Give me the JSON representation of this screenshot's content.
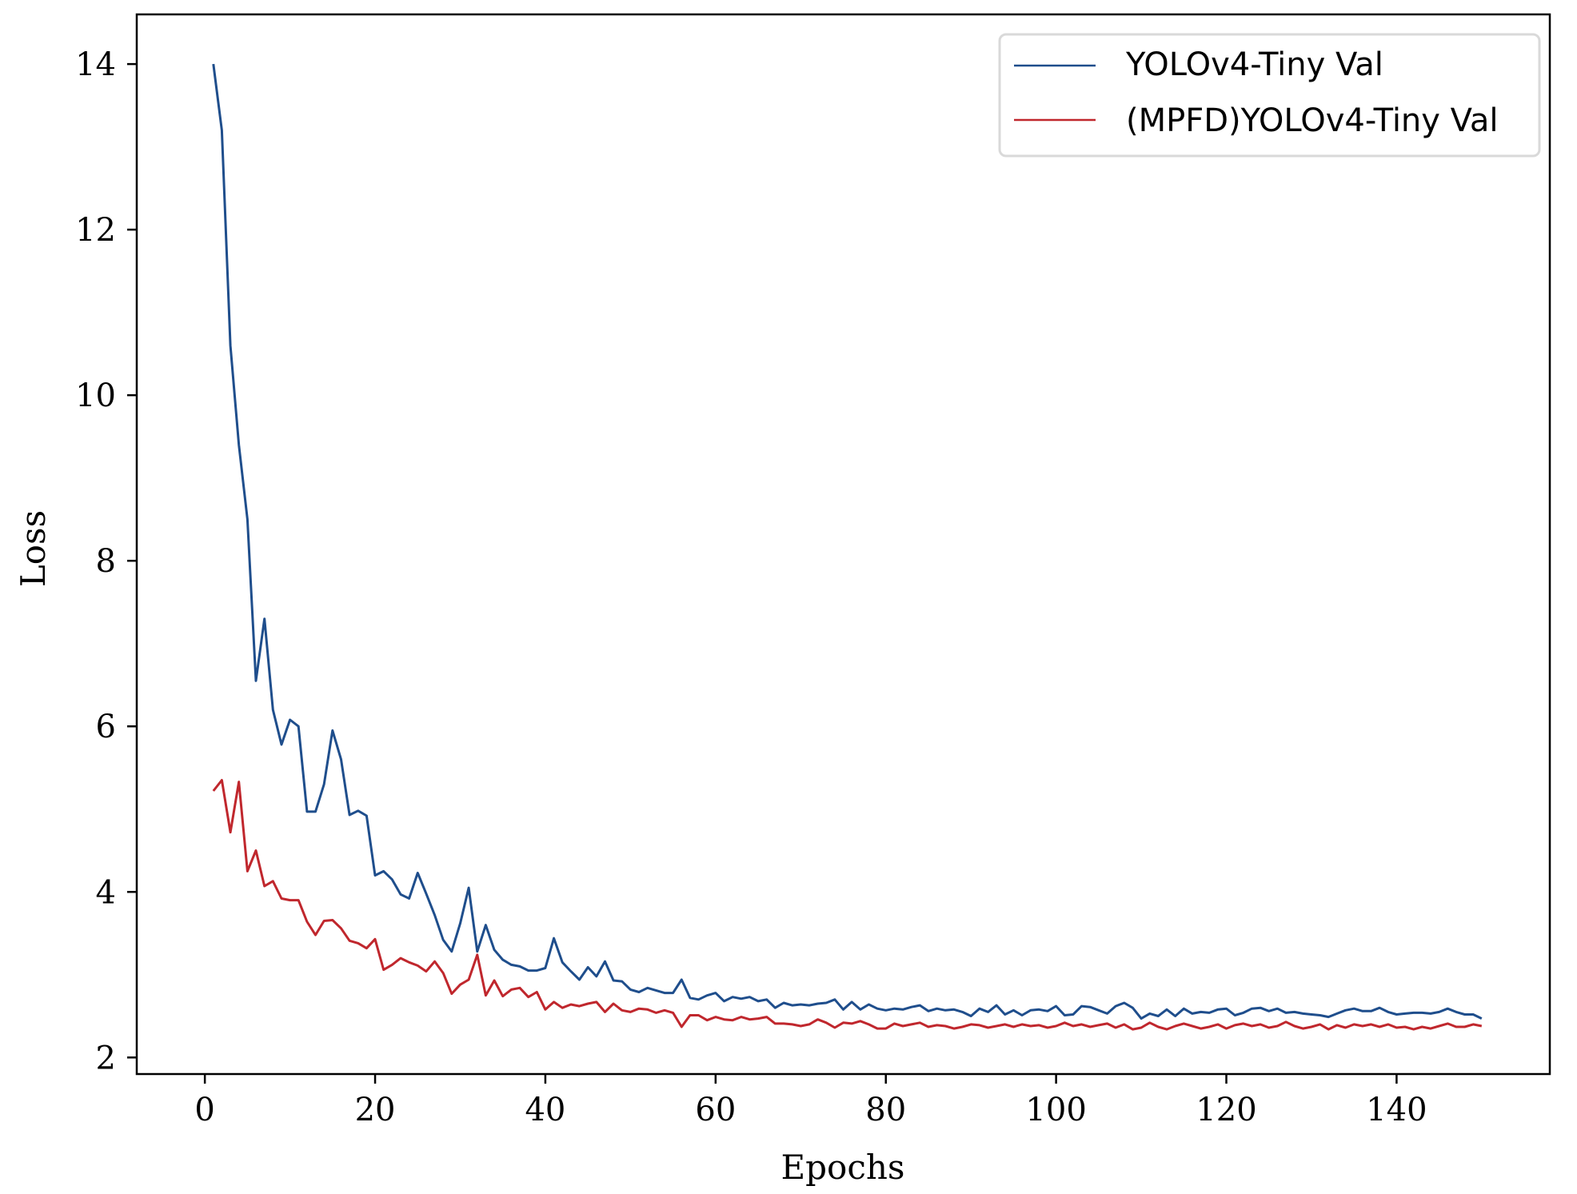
{
  "chart_data": {
    "type": "line",
    "title": "",
    "xlabel": "Epochs",
    "ylabel": "Loss",
    "xlim": [
      -8,
      158
    ],
    "ylim": [
      1.8,
      14.6
    ],
    "xticks": [
      0,
      20,
      40,
      60,
      80,
      100,
      120,
      140
    ],
    "yticks": [
      2,
      4,
      6,
      8,
      10,
      12,
      14
    ],
    "xtick_labels": [
      "0",
      "20",
      "40",
      "60",
      "80",
      "100",
      "120",
      "140"
    ],
    "ytick_labels": [
      "2",
      "4",
      "6",
      "8",
      "10",
      "12",
      "14"
    ],
    "grid": false,
    "legend_position": "top-right",
    "x": [
      1,
      2,
      3,
      4,
      5,
      6,
      7,
      8,
      9,
      10,
      11,
      12,
      13,
      14,
      15,
      16,
      17,
      18,
      19,
      20,
      21,
      22,
      23,
      24,
      25,
      26,
      27,
      28,
      29,
      30,
      31,
      32,
      33,
      34,
      35,
      36,
      37,
      38,
      39,
      40,
      41,
      42,
      43,
      44,
      45,
      46,
      47,
      48,
      49,
      50,
      51,
      52,
      53,
      54,
      55,
      56,
      57,
      58,
      59,
      60,
      61,
      62,
      63,
      64,
      65,
      66,
      67,
      68,
      69,
      70,
      71,
      72,
      73,
      74,
      75,
      76,
      77,
      78,
      79,
      80,
      81,
      82,
      83,
      84,
      85,
      86,
      87,
      88,
      89,
      90,
      91,
      92,
      93,
      94,
      95,
      96,
      97,
      98,
      99,
      100,
      101,
      102,
      103,
      104,
      105,
      106,
      107,
      108,
      109,
      110,
      111,
      112,
      113,
      114,
      115,
      116,
      117,
      118,
      119,
      120,
      121,
      122,
      123,
      124,
      125,
      126,
      127,
      128,
      129,
      130,
      131,
      132,
      133,
      134,
      135,
      136,
      137,
      138,
      139,
      140,
      141,
      142,
      143,
      144,
      145,
      146,
      147,
      148,
      149,
      150
    ],
    "series": [
      {
        "name": "YOLOv4-Tiny Val",
        "color": "#1f4e8c",
        "values": [
          14.0,
          13.2,
          10.6,
          9.4,
          8.5,
          6.55,
          7.3,
          6.2,
          5.78,
          6.08,
          6.0,
          4.97,
          4.97,
          5.3,
          5.95,
          5.6,
          4.93,
          4.98,
          4.92,
          4.2,
          4.25,
          4.15,
          3.97,
          3.92,
          4.23,
          3.98,
          3.72,
          3.42,
          3.28,
          3.62,
          4.05,
          3.28,
          3.6,
          3.3,
          3.18,
          3.12,
          3.1,
          3.05,
          3.05,
          3.08,
          3.44,
          3.15,
          3.04,
          2.94,
          3.09,
          2.98,
          3.16,
          2.93,
          2.92,
          2.82,
          2.79,
          2.84,
          2.81,
          2.78,
          2.78,
          2.94,
          2.72,
          2.7,
          2.75,
          2.78,
          2.68,
          2.73,
          2.71,
          2.73,
          2.68,
          2.7,
          2.6,
          2.66,
          2.63,
          2.64,
          2.63,
          2.65,
          2.66,
          2.7,
          2.58,
          2.67,
          2.58,
          2.64,
          2.59,
          2.57,
          2.59,
          2.58,
          2.61,
          2.63,
          2.56,
          2.59,
          2.57,
          2.58,
          2.55,
          2.5,
          2.59,
          2.55,
          2.63,
          2.52,
          2.57,
          2.51,
          2.57,
          2.58,
          2.56,
          2.62,
          2.51,
          2.52,
          2.62,
          2.61,
          2.57,
          2.53,
          2.62,
          2.66,
          2.6,
          2.47,
          2.53,
          2.5,
          2.58,
          2.5,
          2.59,
          2.53,
          2.55,
          2.54,
          2.58,
          2.59,
          2.51,
          2.54,
          2.59,
          2.6,
          2.56,
          2.59,
          2.54,
          2.55,
          2.53,
          2.52,
          2.51,
          2.49,
          2.53,
          2.57,
          2.59,
          2.56,
          2.56,
          2.6,
          2.55,
          2.52,
          2.53,
          2.54,
          2.54,
          2.53,
          2.55,
          2.59,
          2.55,
          2.52,
          2.52,
          2.47
        ]
      },
      {
        "name": "(MPFD)YOLOv4-Tiny Val",
        "color": "#c0272d",
        "values": [
          5.22,
          5.35,
          4.72,
          5.33,
          4.25,
          4.5,
          4.07,
          4.13,
          3.92,
          3.9,
          3.9,
          3.64,
          3.48,
          3.65,
          3.66,
          3.56,
          3.41,
          3.38,
          3.32,
          3.43,
          3.06,
          3.12,
          3.2,
          3.15,
          3.11,
          3.04,
          3.16,
          3.02,
          2.77,
          2.88,
          2.94,
          3.24,
          2.75,
          2.93,
          2.74,
          2.82,
          2.84,
          2.73,
          2.79,
          2.58,
          2.67,
          2.6,
          2.64,
          2.62,
          2.65,
          2.67,
          2.55,
          2.65,
          2.57,
          2.55,
          2.59,
          2.58,
          2.54,
          2.57,
          2.54,
          2.37,
          2.51,
          2.51,
          2.45,
          2.49,
          2.46,
          2.45,
          2.49,
          2.46,
          2.47,
          2.49,
          2.41,
          2.41,
          2.4,
          2.38,
          2.4,
          2.46,
          2.42,
          2.36,
          2.42,
          2.41,
          2.44,
          2.4,
          2.35,
          2.35,
          2.41,
          2.38,
          2.4,
          2.42,
          2.37,
          2.39,
          2.38,
          2.35,
          2.37,
          2.4,
          2.39,
          2.36,
          2.38,
          2.4,
          2.37,
          2.4,
          2.38,
          2.39,
          2.36,
          2.38,
          2.42,
          2.38,
          2.4,
          2.37,
          2.39,
          2.41,
          2.36,
          2.4,
          2.34,
          2.36,
          2.42,
          2.37,
          2.34,
          2.38,
          2.41,
          2.38,
          2.35,
          2.37,
          2.4,
          2.35,
          2.39,
          2.41,
          2.38,
          2.4,
          2.36,
          2.38,
          2.43,
          2.38,
          2.35,
          2.37,
          2.4,
          2.34,
          2.39,
          2.36,
          2.4,
          2.38,
          2.4,
          2.37,
          2.4,
          2.36,
          2.37,
          2.34,
          2.37,
          2.35,
          2.38,
          2.41,
          2.37,
          2.37,
          2.4,
          2.38
        ]
      }
    ]
  }
}
